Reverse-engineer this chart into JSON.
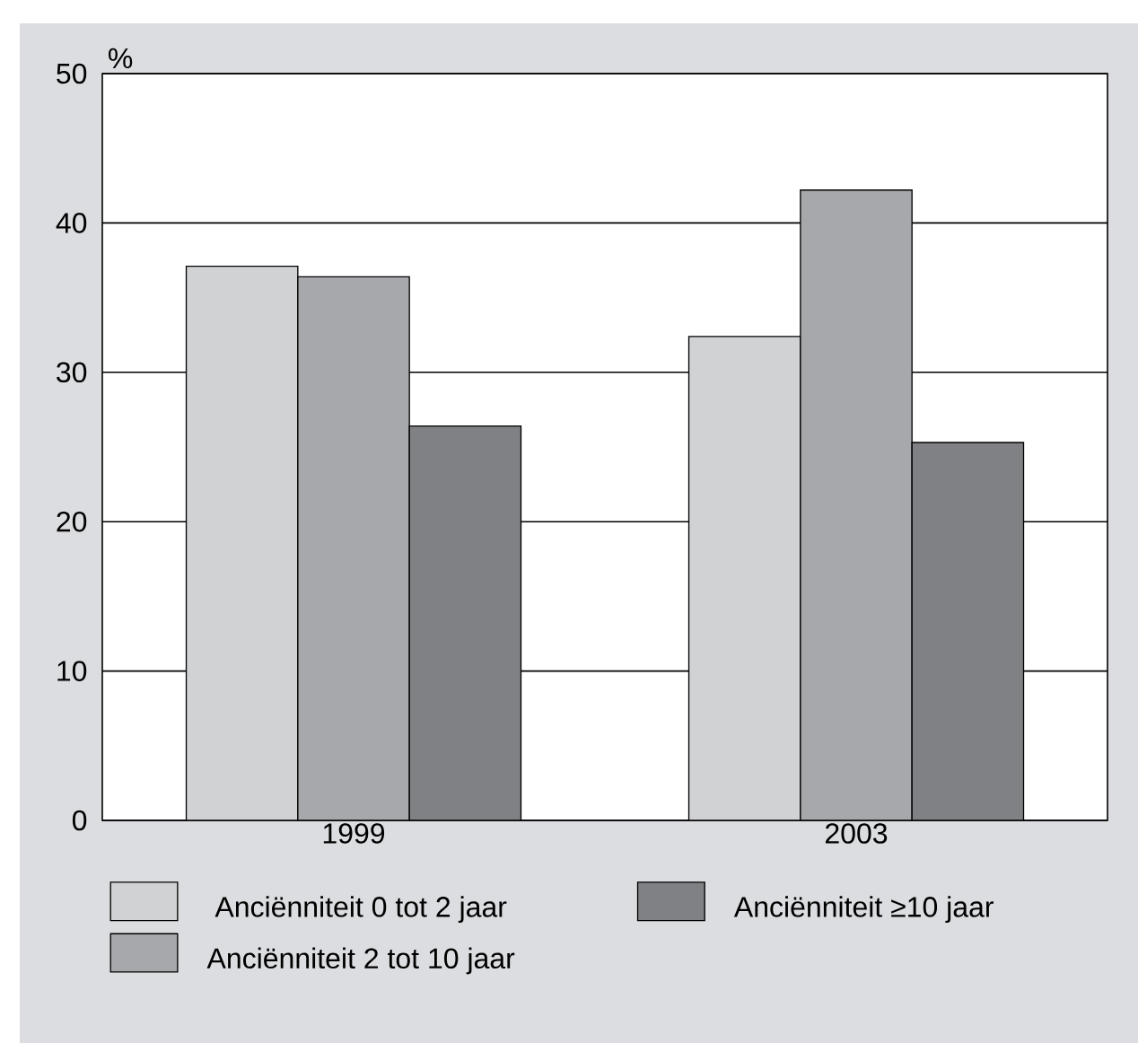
{
  "chart_data": {
    "type": "bar",
    "ylabel": "%",
    "categories": [
      "1999",
      "2003"
    ],
    "series": [
      {
        "name": "Anciënniteit 0 tot 2 jaar",
        "color": "#d1d2d4",
        "values": [
          37.1,
          32.4
        ]
      },
      {
        "name": "Anciënniteit 2 tot 10 jaar",
        "color": "#a7a8ab",
        "values": [
          36.4,
          42.2
        ]
      },
      {
        "name": "Anciënniteit ≥10 jaar",
        "color": "#808184",
        "values": [
          26.4,
          25.3
        ]
      }
    ],
    "ylim": [
      0,
      50
    ],
    "yticks": [
      0,
      10,
      20,
      30,
      40,
      50
    ],
    "grid": "y",
    "legend": "bottom"
  }
}
